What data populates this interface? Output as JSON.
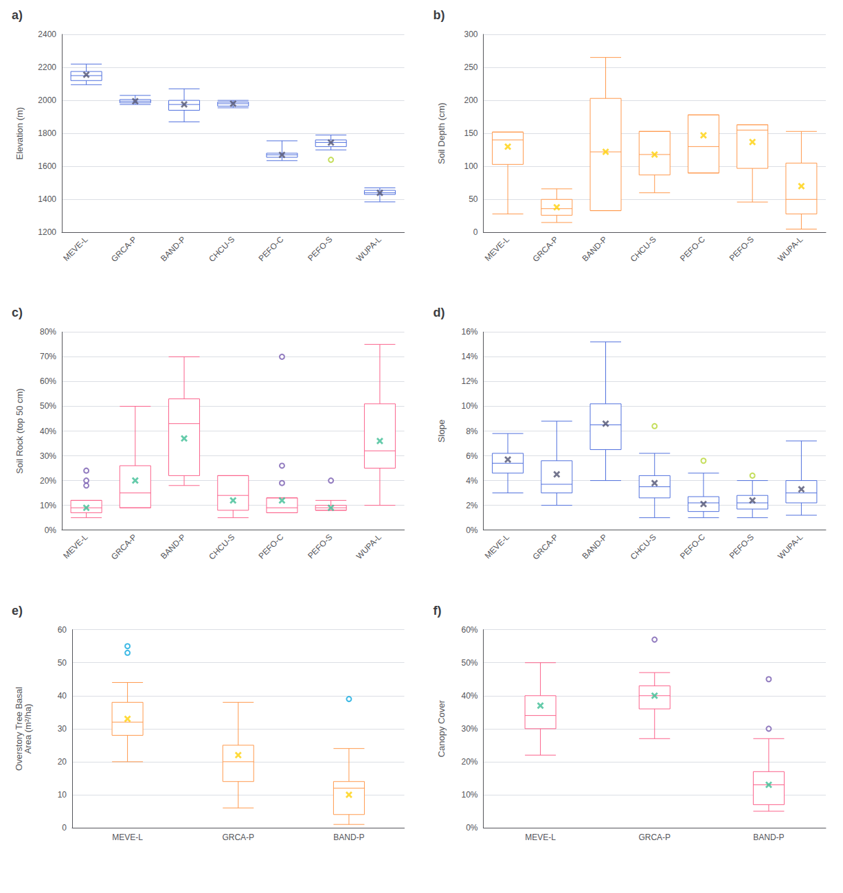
{
  "chart_data": [
    {
      "type": "box",
      "title": "a)",
      "ylabel": "Elevation (m)",
      "categories": [
        "MEVE-L",
        "GRCA-P",
        "BAND-P",
        "CHCU-S",
        "PEFO-C",
        "PEFO-S",
        "WUPA-L"
      ],
      "ylim": [
        1200,
        2400
      ],
      "yticks": [
        1200,
        1400,
        1600,
        1800,
        2000,
        2200,
        2400
      ],
      "grid": true,
      "values": [
        {
          "q1": 2120,
          "median": 2150,
          "q3": 2175,
          "mean": 2155,
          "whislo": 2095,
          "whishi": 2220,
          "fliers": []
        },
        {
          "q1": 1985,
          "median": 1995,
          "q3": 2005,
          "mean": 1995,
          "whislo": 1975,
          "whishi": 2030,
          "fliers": []
        },
        {
          "q1": 1940,
          "median": 1975,
          "q3": 2000,
          "mean": 1975,
          "whislo": 1870,
          "whishi": 2070,
          "fliers": []
        },
        {
          "q1": 1965,
          "median": 1980,
          "q3": 1990,
          "mean": 1980,
          "whislo": 1955,
          "whishi": 2000,
          "fliers": []
        },
        {
          "q1": 1655,
          "median": 1670,
          "q3": 1680,
          "mean": 1670,
          "whislo": 1635,
          "whishi": 1755,
          "fliers": []
        },
        {
          "q1": 1720,
          "median": 1745,
          "q3": 1760,
          "mean": 1745,
          "whislo": 1700,
          "whishi": 1790,
          "fliers": [
            1640
          ]
        },
        {
          "q1": 1430,
          "median": 1440,
          "q3": 1455,
          "mean": 1440,
          "whislo": 1385,
          "whishi": 1470,
          "fliers": []
        }
      ]
    },
    {
      "type": "box",
      "title": "b)",
      "ylabel": "Soil Depth (cm)",
      "categories": [
        "MEVE-L",
        "GRCA-P",
        "BAND-P",
        "CHCU-S",
        "PEFO-C",
        "PEFO-S",
        "WUPA-L"
      ],
      "ylim": [
        0,
        300
      ],
      "yticks": [
        0,
        50,
        100,
        150,
        200,
        250,
        300
      ],
      "grid": true,
      "values": [
        {
          "q1": 103,
          "median": 140,
          "q3": 152,
          "mean": 130,
          "whislo": 28,
          "whishi": 152,
          "fliers": []
        },
        {
          "q1": 26,
          "median": 36,
          "q3": 50,
          "mean": 38,
          "whislo": 15,
          "whishi": 66,
          "fliers": []
        },
        {
          "q1": 33,
          "median": 122,
          "q3": 203,
          "mean": 122,
          "whislo": 33,
          "whishi": 265,
          "fliers": []
        },
        {
          "q1": 87,
          "median": 118,
          "q3": 153,
          "mean": 118,
          "whislo": 60,
          "whishi": 153,
          "fliers": []
        },
        {
          "q1": 90,
          "median": 130,
          "q3": 178,
          "mean": 147,
          "whislo": 90,
          "whishi": 178,
          "fliers": []
        },
        {
          "q1": 97,
          "median": 155,
          "q3": 163,
          "mean": 137,
          "whislo": 46,
          "whishi": 163,
          "fliers": []
        },
        {
          "q1": 28,
          "median": 50,
          "q3": 105,
          "mean": 70,
          "whislo": 5,
          "whishi": 153,
          "fliers": []
        }
      ]
    },
    {
      "type": "box",
      "title": "c)",
      "ylabel": "Soil Rock (top 50 cm)",
      "categories": [
        "MEVE-L",
        "GRCA-P",
        "BAND-P",
        "CHCU-S",
        "PEFO-C",
        "PEFO-S",
        "WUPA-L"
      ],
      "ylim": [
        0,
        0.8
      ],
      "yticks": [
        {
          "value": 0.0,
          "label": "0%"
        },
        {
          "value": 0.1,
          "label": "10%"
        },
        {
          "value": 0.2,
          "label": "20%"
        },
        {
          "value": 0.3,
          "label": "30%"
        },
        {
          "value": 0.4,
          "label": "40%"
        },
        {
          "value": 0.5,
          "label": "50%"
        },
        {
          "value": 0.6,
          "label": "60%"
        },
        {
          "value": 0.7,
          "label": "70%"
        },
        {
          "value": 0.8,
          "label": "80%"
        }
      ],
      "grid": true,
      "values": [
        {
          "q1": 0.07,
          "median": 0.09,
          "q3": 0.12,
          "mean": 0.09,
          "whislo": 0.05,
          "whishi": 0.12,
          "fliers": [
            0.18,
            0.2,
            0.24
          ]
        },
        {
          "q1": 0.09,
          "median": 0.15,
          "q3": 0.26,
          "mean": 0.2,
          "whislo": 0.09,
          "whishi": 0.5,
          "fliers": []
        },
        {
          "q1": 0.22,
          "median": 0.43,
          "q3": 0.53,
          "mean": 0.37,
          "whislo": 0.18,
          "whishi": 0.7,
          "fliers": []
        },
        {
          "q1": 0.08,
          "median": 0.14,
          "q3": 0.22,
          "mean": 0.12,
          "whislo": 0.05,
          "whishi": 0.22,
          "fliers": []
        },
        {
          "q1": 0.07,
          "median": 0.09,
          "q3": 0.13,
          "mean": 0.12,
          "whislo": 0.07,
          "whishi": 0.13,
          "fliers": [
            0.19,
            0.26,
            0.7
          ]
        },
        {
          "q1": 0.08,
          "median": 0.09,
          "q3": 0.1,
          "mean": 0.09,
          "whislo": 0.08,
          "whishi": 0.12,
          "fliers": [
            0.2
          ]
        },
        {
          "q1": 0.25,
          "median": 0.32,
          "q3": 0.51,
          "mean": 0.36,
          "whislo": 0.1,
          "whishi": 0.75,
          "fliers": []
        }
      ]
    },
    {
      "type": "box",
      "title": "d)",
      "ylabel": "Slope",
      "categories": [
        "MEVE-L",
        "GRCA-P",
        "BAND-P",
        "CHCU-S",
        "PEFO-C",
        "PEFO-S",
        "WUPA-L"
      ],
      "ylim": [
        0,
        0.16
      ],
      "yticks": [
        {
          "value": 0.0,
          "label": "0%"
        },
        {
          "value": 0.02,
          "label": "2%"
        },
        {
          "value": 0.04,
          "label": "4%"
        },
        {
          "value": 0.06,
          "label": "6%"
        },
        {
          "value": 0.08,
          "label": "8%"
        },
        {
          "value": 0.1,
          "label": "10%"
        },
        {
          "value": 0.12,
          "label": "12%"
        },
        {
          "value": 0.14,
          "label": "14%"
        },
        {
          "value": 0.16,
          "label": "16%"
        }
      ],
      "grid": true,
      "values": [
        {
          "q1": 0.046,
          "median": 0.054,
          "q3": 0.062,
          "mean": 0.057,
          "whislo": 0.03,
          "whishi": 0.078,
          "fliers": []
        },
        {
          "q1": 0.03,
          "median": 0.037,
          "q3": 0.056,
          "mean": 0.045,
          "whislo": 0.02,
          "whishi": 0.088,
          "fliers": []
        },
        {
          "q1": 0.065,
          "median": 0.085,
          "q3": 0.102,
          "mean": 0.086,
          "whislo": 0.04,
          "whishi": 0.152,
          "fliers": []
        },
        {
          "q1": 0.026,
          "median": 0.035,
          "q3": 0.044,
          "mean": 0.038,
          "whislo": 0.01,
          "whishi": 0.062,
          "fliers": [
            0.084
          ]
        },
        {
          "q1": 0.015,
          "median": 0.022,
          "q3": 0.027,
          "mean": 0.021,
          "whislo": 0.01,
          "whishi": 0.046,
          "fliers": [
            0.056
          ]
        },
        {
          "q1": 0.017,
          "median": 0.022,
          "q3": 0.028,
          "mean": 0.024,
          "whislo": 0.01,
          "whishi": 0.04,
          "fliers": [
            0.044
          ]
        },
        {
          "q1": 0.022,
          "median": 0.03,
          "q3": 0.04,
          "mean": 0.033,
          "whislo": 0.012,
          "whishi": 0.072,
          "fliers": []
        }
      ]
    },
    {
      "type": "box",
      "title": "e)",
      "ylabel": "Overstory Tree Basal\nArea (m²/ha)",
      "categories": [
        "MEVE-L",
        "GRCA-P",
        "BAND-P"
      ],
      "ylim": [
        0,
        60
      ],
      "yticks": [
        0,
        10,
        20,
        30,
        40,
        50,
        60
      ],
      "grid": true,
      "values": [
        {
          "q1": 28,
          "median": 32,
          "q3": 38,
          "mean": 33,
          "whislo": 20,
          "whishi": 44,
          "fliers": [
            53,
            55
          ]
        },
        {
          "q1": 14,
          "median": 20,
          "q3": 25,
          "mean": 22,
          "whislo": 6,
          "whishi": 38,
          "fliers": []
        },
        {
          "q1": 4,
          "median": 12,
          "q3": 14,
          "mean": 10,
          "whislo": 1,
          "whishi": 24,
          "fliers": [
            39
          ]
        }
      ]
    },
    {
      "type": "box",
      "title": "f)",
      "ylabel": "Canopy Cover",
      "categories": [
        "MEVE-L",
        "GRCA-P",
        "BAND-P"
      ],
      "ylim": [
        0,
        0.6
      ],
      "yticks": [
        {
          "value": 0.0,
          "label": "0%"
        },
        {
          "value": 0.1,
          "label": "10%"
        },
        {
          "value": 0.2,
          "label": "20%"
        },
        {
          "value": 0.3,
          "label": "30%"
        },
        {
          "value": 0.4,
          "label": "40%"
        },
        {
          "value": 0.5,
          "label": "50%"
        },
        {
          "value": 0.6,
          "label": "60%"
        }
      ],
      "grid": true,
      "values": [
        {
          "q1": 0.3,
          "median": 0.34,
          "q3": 0.4,
          "mean": 0.37,
          "whislo": 0.22,
          "whishi": 0.5,
          "fliers": []
        },
        {
          "q1": 0.36,
          "median": 0.4,
          "q3": 0.43,
          "mean": 0.4,
          "whislo": 0.27,
          "whishi": 0.47,
          "fliers": [
            0.57
          ]
        },
        {
          "q1": 0.07,
          "median": 0.13,
          "q3": 0.17,
          "mean": 0.13,
          "whislo": 0.05,
          "whishi": 0.27,
          "fliers": [
            0.3,
            0.45
          ]
        }
      ]
    }
  ]
}
